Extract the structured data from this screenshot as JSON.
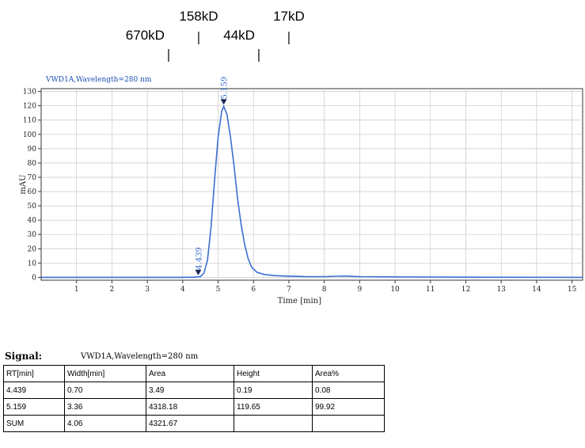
{
  "markers": [
    {
      "label": "670kD",
      "x": 3.6
    },
    {
      "label": "158kD",
      "x": 4.45
    },
    {
      "label": "44kD",
      "x": 6.15
    },
    {
      "label": "17kD",
      "x": 7.0
    }
  ],
  "chart_data": {
    "type": "line",
    "subtitle": "VWD1A,Wavelength=280 nm",
    "xlabel": "Time [min]",
    "ylabel": "mAU",
    "xlim": [
      0,
      15.3
    ],
    "ylim": [
      -2,
      132
    ],
    "xticks": [
      1,
      2,
      3,
      4,
      5,
      6,
      7,
      8,
      9,
      10,
      11,
      12,
      13,
      14,
      15
    ],
    "yticks": [
      0,
      10,
      20,
      30,
      40,
      50,
      60,
      70,
      80,
      90,
      100,
      110,
      120,
      130
    ],
    "grid": true,
    "color": "#3a6fd0",
    "series": [
      {
        "x": [
          0,
          4.0,
          4.3,
          4.5,
          4.6,
          4.7,
          4.8,
          4.9,
          5.0,
          5.1,
          5.159,
          5.25,
          5.35,
          5.45,
          5.55,
          5.65,
          5.75,
          5.85,
          5.95,
          6.1,
          6.3,
          6.6,
          7.0,
          7.5,
          8.0,
          8.5,
          8.7,
          9.0,
          10.0,
          12.0,
          15.3
        ],
        "y": [
          0,
          0,
          0.1,
          0.5,
          3,
          12,
          35,
          68,
          98,
          116,
          119.65,
          114,
          98,
          78,
          55,
          37,
          23,
          13,
          7,
          3.5,
          2,
          1.2,
          0.8,
          0.5,
          0.5,
          0.9,
          0.8,
          0.5,
          0.3,
          0.1,
          0
        ]
      }
    ],
    "peaks": [
      {
        "rt": 4.439,
        "label": "4.439"
      },
      {
        "rt": 5.159,
        "label": "5.159"
      }
    ]
  },
  "signal": {
    "label": "Signal:",
    "value": "VWD1A,Wavelength=280 nm"
  },
  "table": {
    "headers": [
      "RT[min]",
      "Width[min]",
      "Area",
      "Height",
      "Area%"
    ],
    "rows": [
      [
        "4.439",
        "0.70",
        "3.49",
        "0.19",
        "0.08"
      ],
      [
        "5.159",
        "3.36",
        "4318.18",
        "119.65",
        "99.92"
      ],
      [
        "SUM",
        "4.06",
        "4321.67",
        "",
        ""
      ]
    ]
  }
}
